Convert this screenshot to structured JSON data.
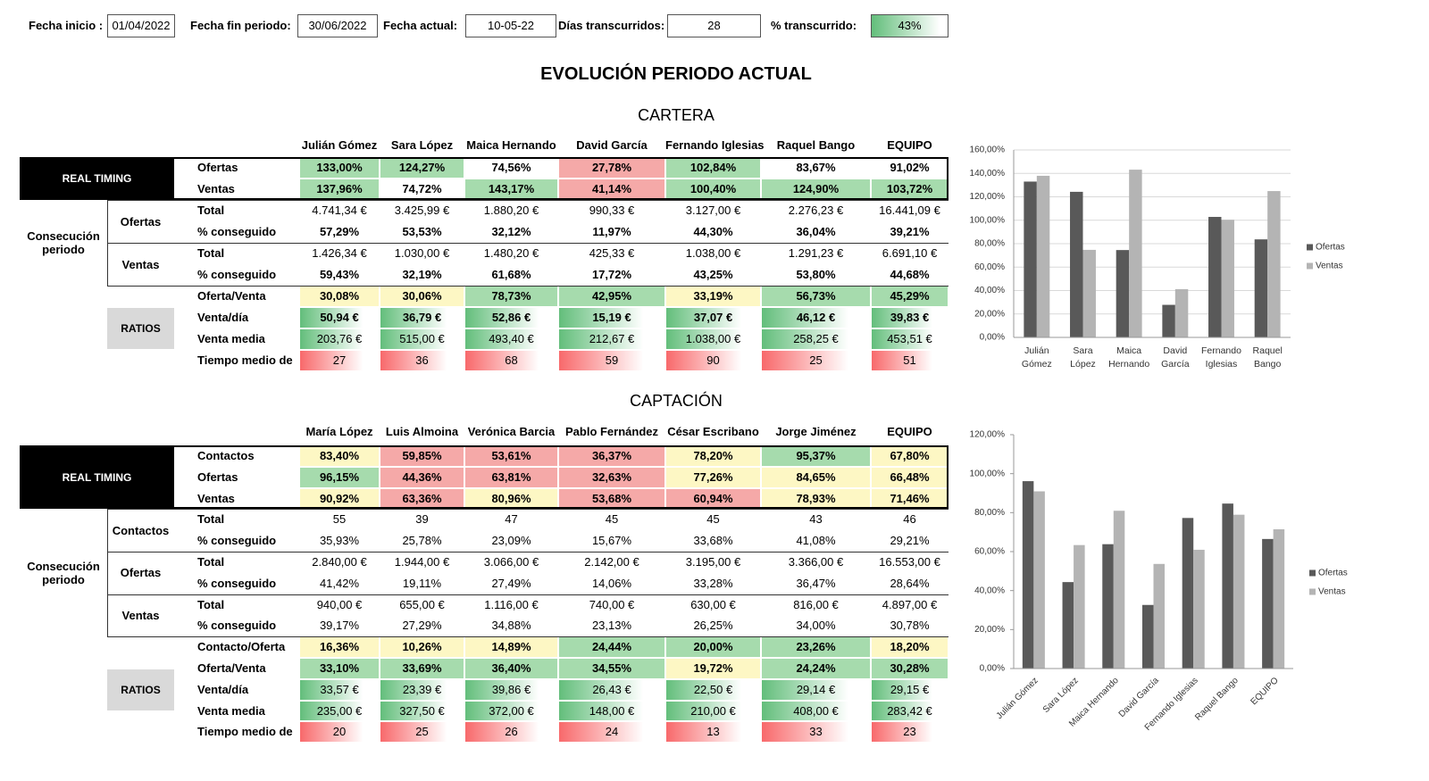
{
  "header": {
    "fields": [
      {
        "label": "Fecha inicio :",
        "value": "01/04/2022"
      },
      {
        "label": "Fecha fin periodo:",
        "value": "30/06/2022"
      },
      {
        "label": "Fecha actual:",
        "value": "10-05-22"
      },
      {
        "label": "Días transcurridos:",
        "value": "28"
      },
      {
        "label": "% transcurrido:",
        "value": "43%"
      }
    ]
  },
  "title": "EVOLUCIÓN PERIODO ACTUAL",
  "sections": [
    {
      "title": "CARTERA",
      "columns": [
        "Julián Gómez",
        "Sara López",
        "Maica Hernando",
        "David García",
        "Fernando Iglesias",
        "Raquel Bango",
        "EQUIPO"
      ],
      "blocks": [
        {
          "label": "REAL TIMING",
          "style": "dark",
          "rows": [
            {
              "label": "Ofertas",
              "bold": true,
              "fills": [
                "g",
                "g",
                "w",
                "r",
                "g",
                "w",
                "w"
              ],
              "cells": [
                "133,00%",
                "124,27%",
                "74,56%",
                "27,78%",
                "102,84%",
                "83,67%",
                "91,02%"
              ]
            },
            {
              "label": "Ventas",
              "bold": true,
              "fills": [
                "g",
                "w",
                "g",
                "r",
                "g",
                "g",
                "g"
              ],
              "cells": [
                "137,96%",
                "74,72%",
                "143,17%",
                "41,14%",
                "100,40%",
                "124,90%",
                "103,72%"
              ]
            }
          ]
        },
        {
          "label": "Consecución periodo",
          "subblocks": [
            {
              "label": "Ofertas",
              "rows": [
                {
                  "label": "Total",
                  "bold": false,
                  "cells": [
                    "4.741,34 €",
                    "3.425,99 €",
                    "1.880,20 €",
                    "990,33 €",
                    "3.127,00 €",
                    "2.276,23 €",
                    "16.441,09 €"
                  ]
                },
                {
                  "label": "% conseguido",
                  "bold": true,
                  "cells": [
                    "57,29%",
                    "53,53%",
                    "32,12%",
                    "11,97%",
                    "44,30%",
                    "36,04%",
                    "39,21%"
                  ]
                }
              ]
            },
            {
              "label": "Ventas",
              "rows": [
                {
                  "label": "Total",
                  "bold": false,
                  "cells": [
                    "1.426,34 €",
                    "1.030,00 €",
                    "1.480,20 €",
                    "425,33 €",
                    "1.038,00 €",
                    "1.291,23 €",
                    "6.691,10 €"
                  ]
                },
                {
                  "label": "% conseguido",
                  "bold": true,
                  "cells": [
                    "59,43%",
                    "32,19%",
                    "61,68%",
                    "17,72%",
                    "43,25%",
                    "53,80%",
                    "44,68%"
                  ]
                }
              ]
            }
          ]
        },
        {
          "label": "RATIOS",
          "style": "gray",
          "rows": [
            {
              "label": "Oferta/Venta",
              "bold": true,
              "fills": [
                "y",
                "y",
                "g",
                "g",
                "y",
                "g",
                "g"
              ],
              "cells": [
                "30,08%",
                "30,06%",
                "78,73%",
                "42,95%",
                "33,19%",
                "56,73%",
                "45,29%"
              ]
            },
            {
              "label": "Venta/día",
              "bold": true,
              "databar": "#63be7b",
              "cells": [
                "50,94 €",
                "36,79 €",
                "52,86 €",
                "15,19 €",
                "37,07 €",
                "46,12 €",
                "39,83 €"
              ]
            },
            {
              "label": "Venta media",
              "bold": false,
              "databar": "#63be7b",
              "cells": [
                "203,76 €",
                "515,00 €",
                "493,40 €",
                "212,67 €",
                "1.038,00 €",
                "258,25 €",
                "453,51 €"
              ]
            },
            {
              "label": "Tiempo medio de",
              "bold": false,
              "databar": "#f8696b",
              "cells": [
                "27",
                "36",
                "68",
                "59",
                "90",
                "25",
                "51"
              ]
            }
          ]
        }
      ]
    },
    {
      "title": "CAPTACIÓN",
      "columns": [
        "María López",
        "Luis Almoina",
        "Verónica Barcia",
        "Pablo Fernández",
        "César Escribano",
        "Jorge Jiménez",
        "EQUIPO"
      ],
      "blocks": [
        {
          "label": "REAL TIMING",
          "style": "dark",
          "rows": [
            {
              "label": "Contactos",
              "bold": true,
              "fills": [
                "y",
                "r",
                "r",
                "r",
                "y",
                "g",
                "y"
              ],
              "cells": [
                "83,40%",
                "59,85%",
                "53,61%",
                "36,37%",
                "78,20%",
                "95,37%",
                "67,80%"
              ]
            },
            {
              "label": "Ofertas",
              "bold": true,
              "fills": [
                "g",
                "r",
                "r",
                "r",
                "y",
                "y",
                "y"
              ],
              "cells": [
                "96,15%",
                "44,36%",
                "63,81%",
                "32,63%",
                "77,26%",
                "84,65%",
                "66,48%"
              ]
            },
            {
              "label": "Ventas",
              "bold": true,
              "fills": [
                "y",
                "r",
                "y",
                "r",
                "r",
                "y",
                "y"
              ],
              "cells": [
                "90,92%",
                "63,36%",
                "80,96%",
                "53,68%",
                "60,94%",
                "78,93%",
                "71,46%"
              ]
            }
          ]
        },
        {
          "label": "Consecución periodo",
          "subblocks": [
            {
              "label": "Contactos",
              "rows": [
                {
                  "label": "Total",
                  "bold": false,
                  "cells": [
                    "55",
                    "39",
                    "47",
                    "45",
                    "45",
                    "43",
                    "46"
                  ]
                },
                {
                  "label": "% conseguido",
                  "bold": false,
                  "cells": [
                    "35,93%",
                    "25,78%",
                    "23,09%",
                    "15,67%",
                    "33,68%",
                    "41,08%",
                    "29,21%"
                  ]
                }
              ]
            },
            {
              "label": "Ofertas",
              "rows": [
                {
                  "label": "Total",
                  "bold": false,
                  "cells": [
                    "2.840,00 €",
                    "1.944,00 €",
                    "3.066,00 €",
                    "2.142,00 €",
                    "3.195,00 €",
                    "3.366,00 €",
                    "16.553,00 €"
                  ]
                },
                {
                  "label": "% conseguido",
                  "bold": false,
                  "cells": [
                    "41,42%",
                    "19,11%",
                    "27,49%",
                    "14,06%",
                    "33,28%",
                    "36,47%",
                    "28,64%"
                  ]
                }
              ]
            },
            {
              "label": "Ventas",
              "rows": [
                {
                  "label": "Total",
                  "bold": false,
                  "cells": [
                    "940,00 €",
                    "655,00 €",
                    "1.116,00 €",
                    "740,00 €",
                    "630,00 €",
                    "816,00 €",
                    "4.897,00 €"
                  ]
                },
                {
                  "label": "% conseguido",
                  "bold": false,
                  "cells": [
                    "39,17%",
                    "27,29%",
                    "34,88%",
                    "23,13%",
                    "26,25%",
                    "34,00%",
                    "30,78%"
                  ]
                }
              ]
            }
          ]
        },
        {
          "label": "RATIOS",
          "style": "gray",
          "rows": [
            {
              "label": "Contacto/Oferta",
              "bold": true,
              "fills": [
                "y",
                "y",
                "y",
                "g",
                "g",
                "g",
                "y"
              ],
              "cells": [
                "16,36%",
                "10,26%",
                "14,89%",
                "24,44%",
                "20,00%",
                "23,26%",
                "18,20%"
              ]
            },
            {
              "label": "Oferta/Venta",
              "bold": true,
              "fills": [
                "g",
                "g",
                "g",
                "g",
                "y",
                "g",
                "g"
              ],
              "cells": [
                "33,10%",
                "33,69%",
                "36,40%",
                "34,55%",
                "19,72%",
                "24,24%",
                "30,28%"
              ]
            },
            {
              "label": "Venta/día",
              "bold": false,
              "databar": "#63be7b",
              "cells": [
                "33,57 €",
                "23,39 €",
                "39,86 €",
                "26,43 €",
                "22,50 €",
                "29,14 €",
                "29,15 €"
              ]
            },
            {
              "label": "Venta media",
              "bold": false,
              "databar": "#63be7b",
              "cells": [
                "235,00 €",
                "327,50 €",
                "372,00 €",
                "148,00 €",
                "210,00 €",
                "408,00 €",
                "283,42 €"
              ]
            },
            {
              "label": "Tiempo medio de",
              "bold": false,
              "databar": "#f8696b",
              "cells": [
                "20",
                "25",
                "26",
                "24",
                "13",
                "33",
                "23"
              ]
            }
          ]
        }
      ]
    }
  ],
  "chart_data": [
    {
      "type": "bar",
      "categories": [
        "Julián Gómez",
        "Sara López",
        "Maica Hernando",
        "David García",
        "Fernando Iglesias",
        "Raquel Bango"
      ],
      "series": [
        {
          "name": "Ofertas",
          "color": "#595959",
          "values": [
            133.0,
            124.27,
            74.56,
            27.78,
            102.84,
            83.67
          ]
        },
        {
          "name": "Ventas",
          "color": "#b4b4b4",
          "values": [
            137.96,
            74.72,
            143.17,
            41.14,
            100.4,
            124.9
          ]
        }
      ],
      "ylim": [
        0,
        160
      ],
      "yticks": [
        {
          "value": 0,
          "label": "0,00%"
        },
        {
          "value": 20,
          "label": "20,00%"
        },
        {
          "value": 40,
          "label": "40,00%"
        },
        {
          "value": 60,
          "label": "60,00%"
        },
        {
          "value": 80,
          "label": "80,00%"
        },
        {
          "value": 100,
          "label": "100,00%"
        },
        {
          "value": 120,
          "label": "120,00%"
        },
        {
          "value": 140,
          "label": "140,00%"
        },
        {
          "value": 160,
          "label": "160,00%"
        }
      ],
      "grid": true,
      "legend": "right"
    },
    {
      "type": "bar",
      "categories": [
        "Julián Gómez",
        "Sara López",
        "Maica Hernando",
        "David García",
        "Fernando Iglesias",
        "Raquel Bango",
        "EQUIPO"
      ],
      "series": [
        {
          "name": "Ofertas",
          "color": "#595959",
          "values": [
            96.15,
            44.36,
            63.81,
            32.63,
            77.26,
            84.65,
            66.48
          ]
        },
        {
          "name": "Ventas",
          "color": "#b4b4b4",
          "values": [
            90.92,
            63.36,
            80.96,
            53.68,
            60.94,
            78.93,
            71.46
          ]
        }
      ],
      "ylim": [
        0,
        120
      ],
      "yticks": [
        {
          "value": 0,
          "label": "0,00%"
        },
        {
          "value": 20,
          "label": "20,00%"
        },
        {
          "value": 40,
          "label": "40,00%"
        },
        {
          "value": 60,
          "label": "60,00%"
        },
        {
          "value": 80,
          "label": "80,00%"
        },
        {
          "value": 100,
          "label": "100,00%"
        },
        {
          "value": 120,
          "label": "120,00%"
        }
      ],
      "grid": false,
      "legend": "right"
    }
  ]
}
